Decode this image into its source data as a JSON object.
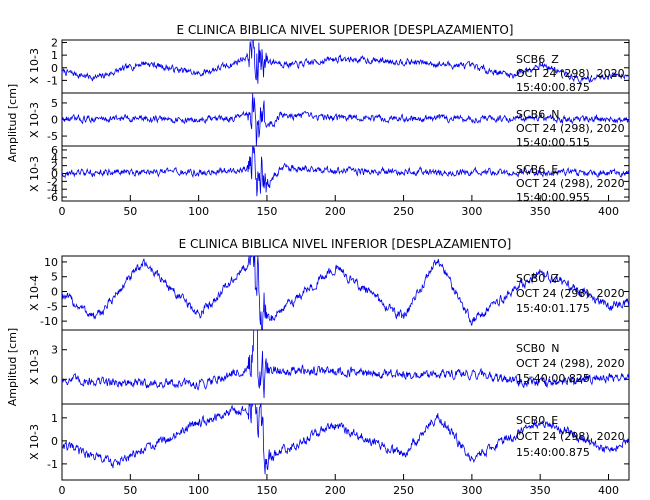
{
  "chart_data": [
    {
      "type": "line",
      "title": "E CLINICA BIBLICA NIVEL SUPERIOR [DESPLAZAMIENTO]",
      "ylabel": "Amplitud [cm]",
      "xlabel": "",
      "xlim": [
        0,
        415
      ],
      "x_ticks": [
        "0",
        "50",
        "100",
        "150",
        "200",
        "250",
        "300",
        "350",
        "400"
      ],
      "grid": false,
      "panels": [
        {
          "station": "SCB6",
          "component": "Z",
          "date": "OCT 24 (298), 2020",
          "time": "15:40:00.875",
          "scale": "X 10-3",
          "y_ticks": [
            "2",
            "1",
            "0",
            "-1"
          ],
          "ylim": [
            -2,
            2.2
          ],
          "series": [
            {
              "x": [
                0,
                25,
                60,
                100,
                125,
                137,
                140,
                142,
                145,
                150,
                170,
                200,
                250,
                300,
                330,
                350,
                380,
                400,
                415
              ],
              "values": [
                -0.3,
                -0.8,
                0.4,
                -0.5,
                0.3,
                1.0,
                2.2,
                -1.3,
                1.0,
                0.6,
                0.2,
                0.7,
                0.5,
                0.1,
                -0.6,
                0.3,
                -1.0,
                -0.6,
                -0.5
              ]
            }
          ]
        },
        {
          "station": "SCB6",
          "component": "N",
          "date": "OCT 24 (298), 2020",
          "time": "15:40:00.515",
          "scale": "X 10-3",
          "y_ticks": [
            "5",
            "0",
            "-5"
          ],
          "ylim": [
            -8,
            8
          ],
          "series": [
            {
              "x": [
                0,
                50,
                100,
                130,
                138,
                141,
                143,
                146,
                150,
                160,
                200,
                300,
                415
              ],
              "values": [
                0,
                0.4,
                -0.3,
                0.6,
                1.5,
                7.2,
                -7.0,
                4.5,
                -3.0,
                1.2,
                0.5,
                0.3,
                0
              ]
            }
          ]
        },
        {
          "station": "SCB6",
          "component": "E",
          "date": "OCT 24 (298), 2020",
          "time": "15:40:00.955",
          "scale": "X 10-3",
          "y_ticks": [
            "6",
            "4",
            "2",
            "0",
            "-2",
            "-4",
            "-6"
          ],
          "ylim": [
            -7,
            7
          ],
          "series": [
            {
              "x": [
                0,
                50,
                100,
                130,
                138,
                141,
                143,
                146,
                150,
                160,
                200,
                300,
                415
              ],
              "values": [
                0,
                0.4,
                0.2,
                0.8,
                2.0,
                6.4,
                -6.3,
                4.0,
                -3.5,
                1.5,
                0.6,
                0.3,
                0.1
              ]
            }
          ]
        }
      ]
    },
    {
      "type": "line",
      "title": "E CLINICA BIBLICA NIVEL INFERIOR [DESPLAZAMIENTO]",
      "ylabel": "Amplitud [cm]",
      "xlabel": "",
      "xlim": [
        0,
        415
      ],
      "x_ticks": [
        "0",
        "50",
        "100",
        "150",
        "200",
        "250",
        "300",
        "350",
        "400"
      ],
      "grid": false,
      "panels": [
        {
          "station": "SCB0",
          "component": "Z",
          "date": "OCT 24 (298), 2020",
          "time": "15:40:01.175",
          "scale": "X 10-4",
          "y_ticks": [
            "10",
            "5",
            "0",
            "-5",
            "-10"
          ],
          "ylim": [
            -13,
            12
          ],
          "series": [
            {
              "x": [
                0,
                25,
                60,
                100,
                140,
                150,
                200,
                250,
                275,
                300,
                350,
                400,
                415
              ],
              "values": [
                -1,
                -9,
                10,
                -8,
                11,
                -10,
                8,
                -9,
                11,
                -10,
                7,
                -5,
                -4
              ]
            }
          ]
        },
        {
          "station": "SCB0",
          "component": "N",
          "date": "OCT 24 (298), 2020",
          "time": "15:40:00.825",
          "scale": "X 10-3",
          "y_ticks": [
            "3",
            "0"
          ],
          "ylim": [
            -2.5,
            5
          ],
          "series": [
            {
              "x": [
                0,
                50,
                100,
                140,
                142,
                145,
                150,
                200,
                250,
                300,
                350,
                415
              ],
              "values": [
                0,
                -0.4,
                -0.5,
                1.2,
                4.2,
                -2.2,
                1.0,
                0.8,
                0.4,
                0.6,
                -0.5,
                0.5
              ]
            }
          ]
        },
        {
          "station": "SCB0",
          "component": "E",
          "date": "OCT 24 (298), 2020",
          "time": "15:40:00.875",
          "scale": "X 10-3",
          "y_ticks": [
            "1",
            "0",
            "-1"
          ],
          "ylim": [
            -1.7,
            1.6
          ],
          "series": [
            {
              "x": [
                0,
                40,
                100,
                140,
                150,
                200,
                250,
                275,
                300,
                350,
                400,
                415
              ],
              "values": [
                -0.2,
                -1.0,
                0.8,
                1.5,
                -0.8,
                0.7,
                -0.6,
                1.1,
                -0.8,
                0.9,
                -0.4,
                0.1
              ]
            }
          ]
        }
      ]
    }
  ],
  "colors": {
    "trace": "#0000ee",
    "axis": "#000000",
    "background": "#ffffff"
  }
}
